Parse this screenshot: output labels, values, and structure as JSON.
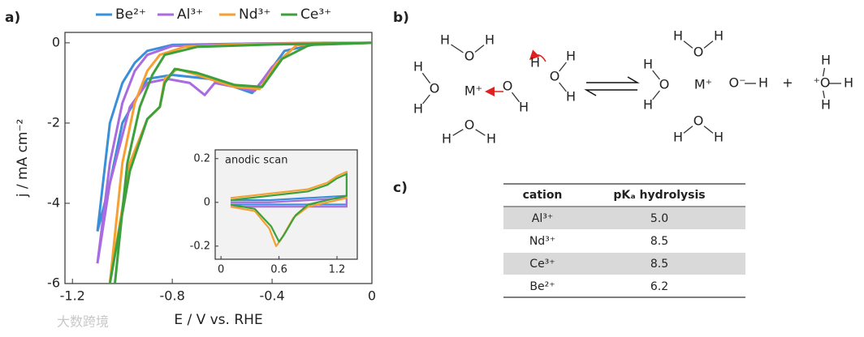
{
  "panels": [
    "a)",
    "b)",
    "c)"
  ],
  "chart_data": [
    {
      "type": "line",
      "x_label": "E / V vs. RHE",
      "y_label": "j / mA cm⁻²",
      "xlim": [
        -1.23,
        0
      ],
      "ylim": [
        -6,
        0.26
      ],
      "xticks": [
        -1.2,
        -0.8,
        -0.4,
        0
      ],
      "yticks": [
        0,
        -2,
        -4,
        -6
      ],
      "legend": "top",
      "series": [
        {
          "name": "Be²⁺",
          "color": "#3a8fd8",
          "x": [
            -1.1,
            -1.05,
            -1.0,
            -0.95,
            -0.9,
            -0.8,
            -0.5,
            -0.2,
            0,
            -0.2,
            -0.35,
            -0.42,
            -0.48,
            -0.55,
            -0.65,
            -0.8,
            -0.9,
            -1.0,
            -1.05,
            -1.1
          ],
          "values": [
            -4.7,
            -2,
            -1,
            -0.5,
            -0.2,
            -0.05,
            -0.02,
            0,
            0,
            0,
            -0.2,
            -0.8,
            -1.25,
            -1.1,
            -0.9,
            -0.8,
            -0.9,
            -2,
            -3.5,
            -4.7
          ]
        },
        {
          "name": "Al³⁺",
          "color": "#a96be0",
          "x": [
            -1.1,
            -1.05,
            -1.0,
            -0.95,
            -0.9,
            -0.8,
            -0.5,
            0,
            -0.3,
            -0.4,
            -0.47,
            -0.55,
            -0.63,
            -0.67,
            -0.73,
            -0.82,
            -0.9,
            -0.97,
            -1.05,
            -1.1
          ],
          "values": [
            -5.5,
            -3,
            -1.5,
            -0.7,
            -0.3,
            -0.08,
            -0.02,
            0,
            -0.05,
            -0.6,
            -1.2,
            -1.1,
            -1.0,
            -1.3,
            -1.0,
            -0.9,
            -1.0,
            -1.6,
            -3.5,
            -5.5
          ]
        },
        {
          "name": "Nd³⁺",
          "color": "#f5a030",
          "x": [
            -1.05,
            -1.0,
            -0.95,
            -0.9,
            -0.85,
            -0.75,
            -0.5,
            0,
            -0.3,
            -0.38,
            -0.45,
            -0.55,
            -0.7,
            -0.78,
            -0.83,
            -0.85,
            -0.9,
            -0.97,
            -1.05
          ],
          "values": [
            -6,
            -3,
            -1.5,
            -0.7,
            -0.3,
            -0.1,
            -0.03,
            0,
            -0.05,
            -0.5,
            -1.15,
            -1.1,
            -0.8,
            -0.65,
            -0.9,
            -1.6,
            -1.9,
            -3,
            -6
          ]
        },
        {
          "name": "Ce³⁺",
          "color": "#3da03d",
          "x": [
            -1.03,
            -0.98,
            -0.93,
            -0.88,
            -0.83,
            -0.7,
            -0.4,
            0,
            -0.25,
            -0.36,
            -0.44,
            -0.55,
            -0.7,
            -0.79,
            -0.83,
            -0.85,
            -0.9,
            -0.97,
            -1.05
          ],
          "values": [
            -6,
            -3,
            -1.6,
            -0.8,
            -0.3,
            -0.1,
            -0.04,
            0,
            -0.05,
            -0.4,
            -1.1,
            -1.05,
            -0.75,
            -0.65,
            -1.0,
            -1.6,
            -1.9,
            -3.2,
            -6
          ]
        }
      ]
    },
    {
      "type": "line",
      "annotation": "anodic scan",
      "xlim": [
        -0.06,
        1.41
      ],
      "ylim": [
        -0.26,
        0.24
      ],
      "xticks": [
        0,
        0.6,
        1.2
      ],
      "yticks": [
        -0.2,
        0,
        0.2
      ],
      "series": [
        {
          "color": "#3a8fd8",
          "x": [
            0.1,
            0.5,
            0.9,
            1.3,
            1.3,
            0.9,
            0.5,
            0.1
          ],
          "values": [
            0.01,
            0.01,
            0.02,
            0.03,
            -0.01,
            -0.01,
            -0.01,
            -0.01
          ]
        },
        {
          "color": "#a96be0",
          "x": [
            0.1,
            0.5,
            0.9,
            1.3,
            1.3,
            0.9,
            0.5,
            0.1
          ],
          "values": [
            0.0,
            0.0,
            0.01,
            0.02,
            -0.02,
            -0.02,
            -0.02,
            -0.02
          ]
        },
        {
          "color": "#f5a030",
          "x": [
            0.1,
            0.3,
            0.5,
            0.7,
            0.9,
            1.1,
            1.2,
            1.3,
            1.3,
            1.1,
            0.9,
            0.75,
            0.62,
            0.57,
            0.5,
            0.35,
            0.1
          ],
          "values": [
            0.02,
            0.03,
            0.04,
            0.05,
            0.06,
            0.09,
            0.12,
            0.14,
            0.02,
            0.0,
            -0.02,
            -0.07,
            -0.17,
            -0.2,
            -0.12,
            -0.04,
            -0.02
          ]
        },
        {
          "color": "#3da03d",
          "x": [
            0.1,
            0.3,
            0.5,
            0.7,
            0.9,
            1.1,
            1.2,
            1.3,
            1.3,
            1.1,
            0.9,
            0.77,
            0.65,
            0.6,
            0.52,
            0.35,
            0.1
          ],
          "values": [
            0.01,
            0.02,
            0.03,
            0.04,
            0.05,
            0.08,
            0.11,
            0.13,
            0.03,
            0.01,
            -0.01,
            -0.06,
            -0.15,
            -0.18,
            -0.11,
            -0.03,
            -0.01
          ]
        }
      ]
    }
  ],
  "diagram": {
    "atoms": [
      "H",
      "O",
      "H",
      "H",
      "O",
      "H",
      "M⁺",
      "O",
      "H",
      "H",
      "O",
      "H",
      "H",
      "O",
      "H",
      "H",
      "H",
      "O",
      "H",
      "H",
      "O",
      "H",
      "M⁺",
      "O⁻",
      "H",
      "O",
      "H",
      "H",
      "+",
      "H",
      "⁺O",
      "H",
      "H"
    ]
  },
  "table": {
    "header": [
      "cation",
      "pKₐ hydrolysis"
    ],
    "rows": [
      [
        "Al³⁺",
        "5.0"
      ],
      [
        "Nd³⁺",
        "8.5"
      ],
      [
        "Ce³⁺",
        "8.5"
      ],
      [
        "Be²⁺",
        "6.2"
      ]
    ]
  },
  "watermark": "大数跨境"
}
